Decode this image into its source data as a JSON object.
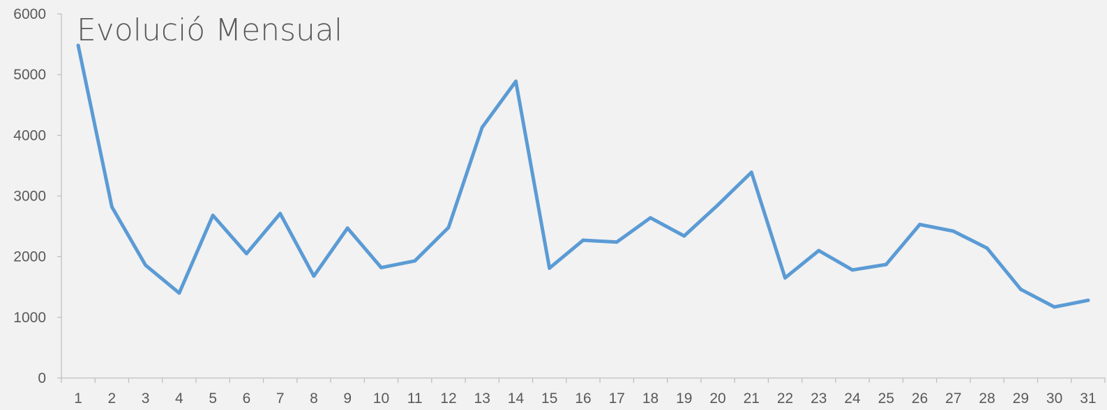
{
  "chart_data": {
    "type": "line",
    "title": "Evolució Mensual",
    "xlabel": "",
    "ylabel": "",
    "categories": [
      "1",
      "2",
      "3",
      "4",
      "5",
      "6",
      "7",
      "8",
      "9",
      "10",
      "11",
      "12",
      "13",
      "14",
      "15",
      "16",
      "17",
      "18",
      "19",
      "20",
      "21",
      "22",
      "23",
      "24",
      "25",
      "26",
      "27",
      "28",
      "29",
      "30",
      "31"
    ],
    "series": [
      {
        "values": [
          5480,
          2820,
          1860,
          1400,
          2680,
          2050,
          2710,
          1680,
          2470,
          1820,
          1930,
          2480,
          4130,
          4890,
          1810,
          2270,
          2240,
          2640,
          2340,
          2850,
          3390,
          1650,
          2100,
          1780,
          1870,
          2530,
          2420,
          2140,
          1460,
          1170,
          1280
        ]
      }
    ],
    "ylim": [
      0,
      6000
    ],
    "yticks": [
      0,
      1000,
      2000,
      3000,
      4000,
      5000,
      6000
    ],
    "grid": false,
    "legend": "none",
    "colors": {
      "line": "#5b9bd5",
      "axis": "#bfbfbf",
      "text": "#595959",
      "background": "#f2f2f2"
    }
  }
}
